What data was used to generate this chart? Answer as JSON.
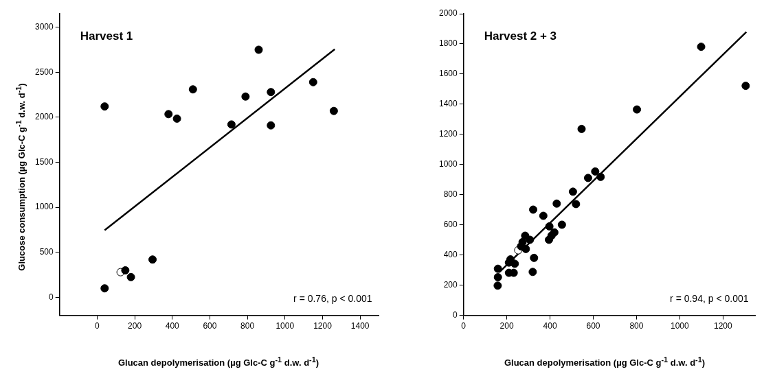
{
  "chart_data": [
    {
      "type": "scatter",
      "title": "Harvest 1",
      "xlabel": "Glucan depolymerisation (µg Glc-C g$^{-1}$ d.w. d$^{-1}$)",
      "ylabel": "Glucose consumption (µg Glc-C g$^{-1}$ d.w. d$^{-1}$)",
      "annotations": [
        "r = 0.76, p < 0.001"
      ],
      "xlim": [
        -200,
        1500
      ],
      "xticks": [
        0,
        200,
        400,
        600,
        800,
        1000,
        1200,
        1400
      ],
      "ylim": [
        -200,
        3150
      ],
      "yticks": [
        0,
        500,
        1000,
        1500,
        2000,
        2500,
        3000
      ],
      "grid": false,
      "legend": false,
      "marker": "circle",
      "series": [
        {
          "color": "#000000",
          "x": [
            40,
            40,
            150,
            180,
            295,
            380,
            425,
            510,
            715,
            790,
            925,
            925,
            860,
            1150,
            1260
          ],
          "values": [
            2120,
            100,
            300,
            225,
            420,
            2035,
            1985,
            2310,
            1920,
            2230,
            2280,
            1910,
            2750,
            2390,
            2070
          ]
        },
        {
          "color": "#ffffff",
          "x": [
            125
          ],
          "values": [
            280
          ]
        },
        {
          "type": "line",
          "marker": "none",
          "color": "#000000",
          "x": [
            40,
            1265
          ],
          "values": [
            745,
            2755
          ]
        }
      ]
    },
    {
      "type": "scatter",
      "title": "Harvest 2 + 3",
      "xlabel": "Glucan depolymerisation (µg Glc-C g$^{-1}$ d.w. d$^{-1}$)",
      "annotations": [
        "r = 0.94, p < 0.001"
      ],
      "xlim": [
        0,
        1350
      ],
      "xticks": [
        0,
        200,
        400,
        600,
        800,
        1000,
        1200
      ],
      "ylim": [
        0,
        2000
      ],
      "yticks": [
        0,
        200,
        400,
        600,
        800,
        1000,
        1200,
        1400,
        1600,
        1800,
        2000
      ],
      "grid": false,
      "legend": false,
      "marker": "circle",
      "series": [
        {
          "color": "#000000",
          "x": [
            1099,
            1305,
            802,
            546,
            609,
            576,
            634,
            506,
            520,
            431,
            322,
            369,
            397,
            455,
            420,
            407,
            395,
            285,
            307,
            273,
            266,
            288,
            326,
            320,
            217,
            210,
            237,
            210,
            232,
            159,
            159,
            158
          ],
          "values": [
            1781,
            1522,
            1365,
            1236,
            954,
            911,
            918,
            820,
            738,
            741,
            701,
            660,
            590,
            601,
            550,
            529,
            501,
            528,
            501,
            486,
            458,
            440,
            381,
            288,
            371,
            350,
            342,
            282,
            282,
            309,
            253,
            197
          ]
        },
        {
          "color": "#ffffff",
          "x": [
            253
          ],
          "values": [
            432
          ]
        },
        {
          "type": "line",
          "marker": "none",
          "color": "#000000",
          "x": [
            165,
            1308
          ],
          "values": [
            285,
            1879
          ]
        }
      ]
    }
  ]
}
